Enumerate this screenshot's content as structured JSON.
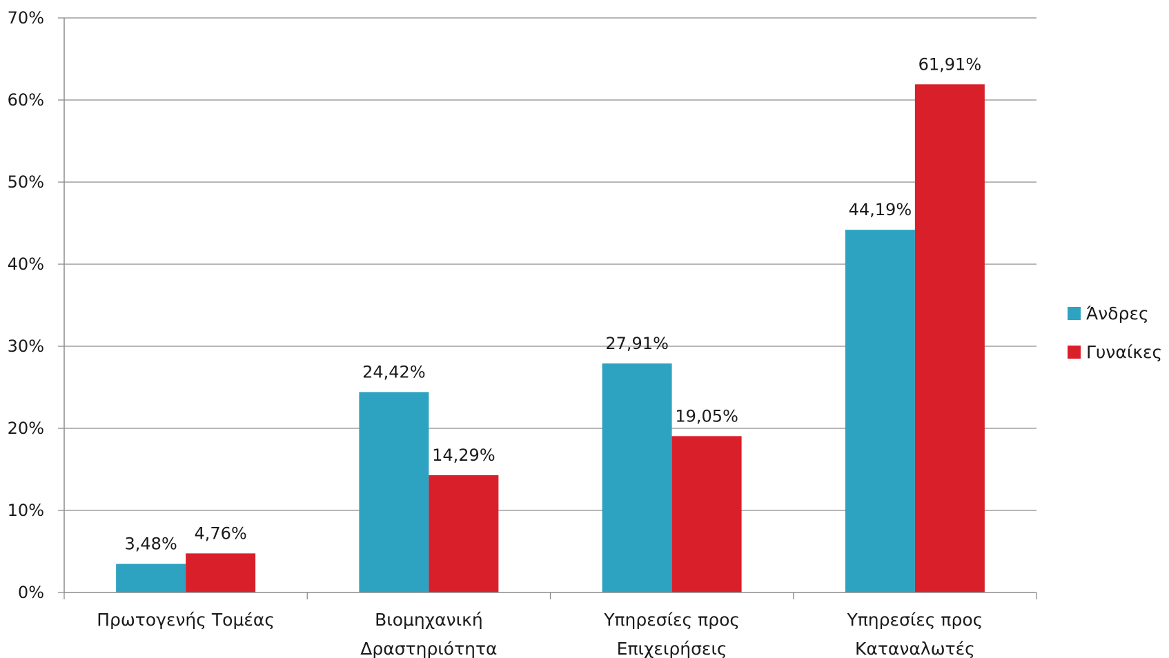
{
  "chart_data": {
    "type": "bar",
    "categories": [
      [
        "Πρωτογενής Τομέας"
      ],
      [
        "Βιομηχανική",
        "Δραστηριότητα"
      ],
      [
        "Υπηρεσίες προς",
        "Επιχειρήσεις"
      ],
      [
        "Υπηρεσίες προς",
        "Καταναλωτές"
      ]
    ],
    "series": [
      {
        "name": "Άνδρες",
        "color": "#2ea3c1",
        "values": [
          3.48,
          24.42,
          27.91,
          44.19
        ],
        "labels": [
          "3,48%",
          "24,42%",
          "27,91%",
          "44,19%"
        ]
      },
      {
        "name": "Γυναίκες",
        "color": "#d9202a",
        "values": [
          4.76,
          14.29,
          19.05,
          61.91
        ],
        "labels": [
          "4,76%",
          "14,29%",
          "19,05%",
          "61,91%"
        ]
      }
    ],
    "ylim": [
      0,
      70
    ],
    "yticks": [
      0,
      10,
      20,
      30,
      40,
      50,
      60,
      70
    ],
    "ytick_labels": [
      "0%",
      "10%",
      "20%",
      "30%",
      "40%",
      "50%",
      "60%",
      "70%"
    ],
    "grid": true,
    "legend_position": "right",
    "title": "",
    "xlabel": "",
    "ylabel": ""
  }
}
